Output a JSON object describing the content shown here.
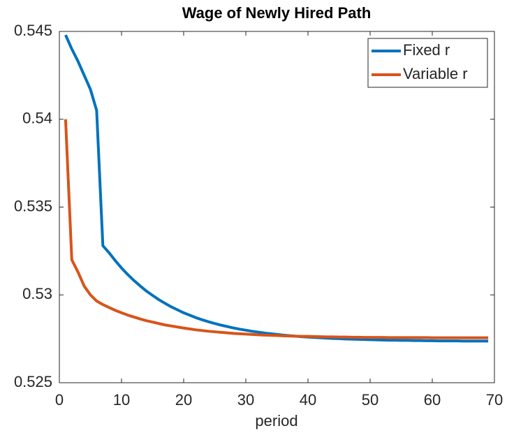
{
  "chart_data": {
    "type": "line",
    "title": "Wage of Newly Hired Path",
    "x_label": "period",
    "x": [
      1,
      2,
      3,
      4,
      5,
      6,
      7,
      8,
      9,
      10,
      11,
      12,
      13,
      14,
      15,
      16,
      17,
      18,
      19,
      20,
      21,
      22,
      23,
      24,
      25,
      26,
      27,
      28,
      29,
      30,
      31,
      32,
      33,
      34,
      35,
      36,
      37,
      38,
      39,
      40,
      41,
      42,
      43,
      44,
      45,
      46,
      47,
      48,
      49,
      50,
      51,
      52,
      53,
      54,
      55,
      56,
      57,
      58,
      59,
      60,
      61,
      62,
      63,
      64,
      65,
      66,
      67,
      68,
      69
    ],
    "series": [
      {
        "name": "Fixed r",
        "color": "#0072BD",
        "values": [
          0.5448,
          0.544,
          0.5433,
          0.5425,
          0.5417,
          0.5405,
          0.5328,
          0.5324,
          0.53195,
          0.53153,
          0.53116,
          0.53082,
          0.53051,
          0.53022,
          0.52997,
          0.52973,
          0.52952,
          0.52932,
          0.52915,
          0.52898,
          0.52884,
          0.5287,
          0.52858,
          0.52847,
          0.52837,
          0.52828,
          0.5282,
          0.52812,
          0.52805,
          0.52799,
          0.52793,
          0.52788,
          0.52783,
          0.52779,
          0.52775,
          0.52771,
          0.52768,
          0.52765,
          0.52762,
          0.5276,
          0.52758,
          0.52756,
          0.52754,
          0.52752,
          0.52751,
          0.52749,
          0.52748,
          0.52747,
          0.52746,
          0.52745,
          0.52744,
          0.52743,
          0.52742,
          0.52742,
          0.52741,
          0.52741,
          0.5274,
          0.5274,
          0.52739,
          0.52739,
          0.52738,
          0.52738,
          0.52738,
          0.52738,
          0.52737,
          0.52737,
          0.52737,
          0.52737,
          0.52737
        ]
      },
      {
        "name": "Variable r",
        "color": "#D95319",
        "values": [
          0.54,
          0.532,
          0.5313,
          0.5305,
          0.53,
          0.52965,
          0.52945,
          0.52928,
          0.52912,
          0.52898,
          0.52885,
          0.52874,
          0.52863,
          0.52853,
          0.52845,
          0.52837,
          0.52829,
          0.52823,
          0.52817,
          0.52811,
          0.52806,
          0.52801,
          0.52797,
          0.52793,
          0.5279,
          0.52787,
          0.52784,
          0.52781,
          0.52779,
          0.52777,
          0.52775,
          0.52773,
          0.52771,
          0.5277,
          0.52769,
          0.52767,
          0.52766,
          0.52765,
          0.52764,
          0.52764,
          0.52763,
          0.52762,
          0.52761,
          0.52761,
          0.5276,
          0.5276,
          0.52759,
          0.52759,
          0.52758,
          0.52758,
          0.52758,
          0.52758,
          0.52757,
          0.52757,
          0.52757,
          0.52757,
          0.52757,
          0.52757,
          0.52757,
          0.52756,
          0.52756,
          0.52756,
          0.52756,
          0.52756,
          0.52756,
          0.52756,
          0.52756,
          0.52756,
          0.52756
        ]
      }
    ],
    "xlim": [
      0,
      70
    ],
    "xticks": [
      0,
      10,
      20,
      30,
      40,
      50,
      60,
      70
    ],
    "ylim": [
      0.525,
      0.545
    ],
    "yticks": [
      0.525,
      0.53,
      0.535,
      0.54,
      0.545
    ],
    "legend": "top-right"
  }
}
